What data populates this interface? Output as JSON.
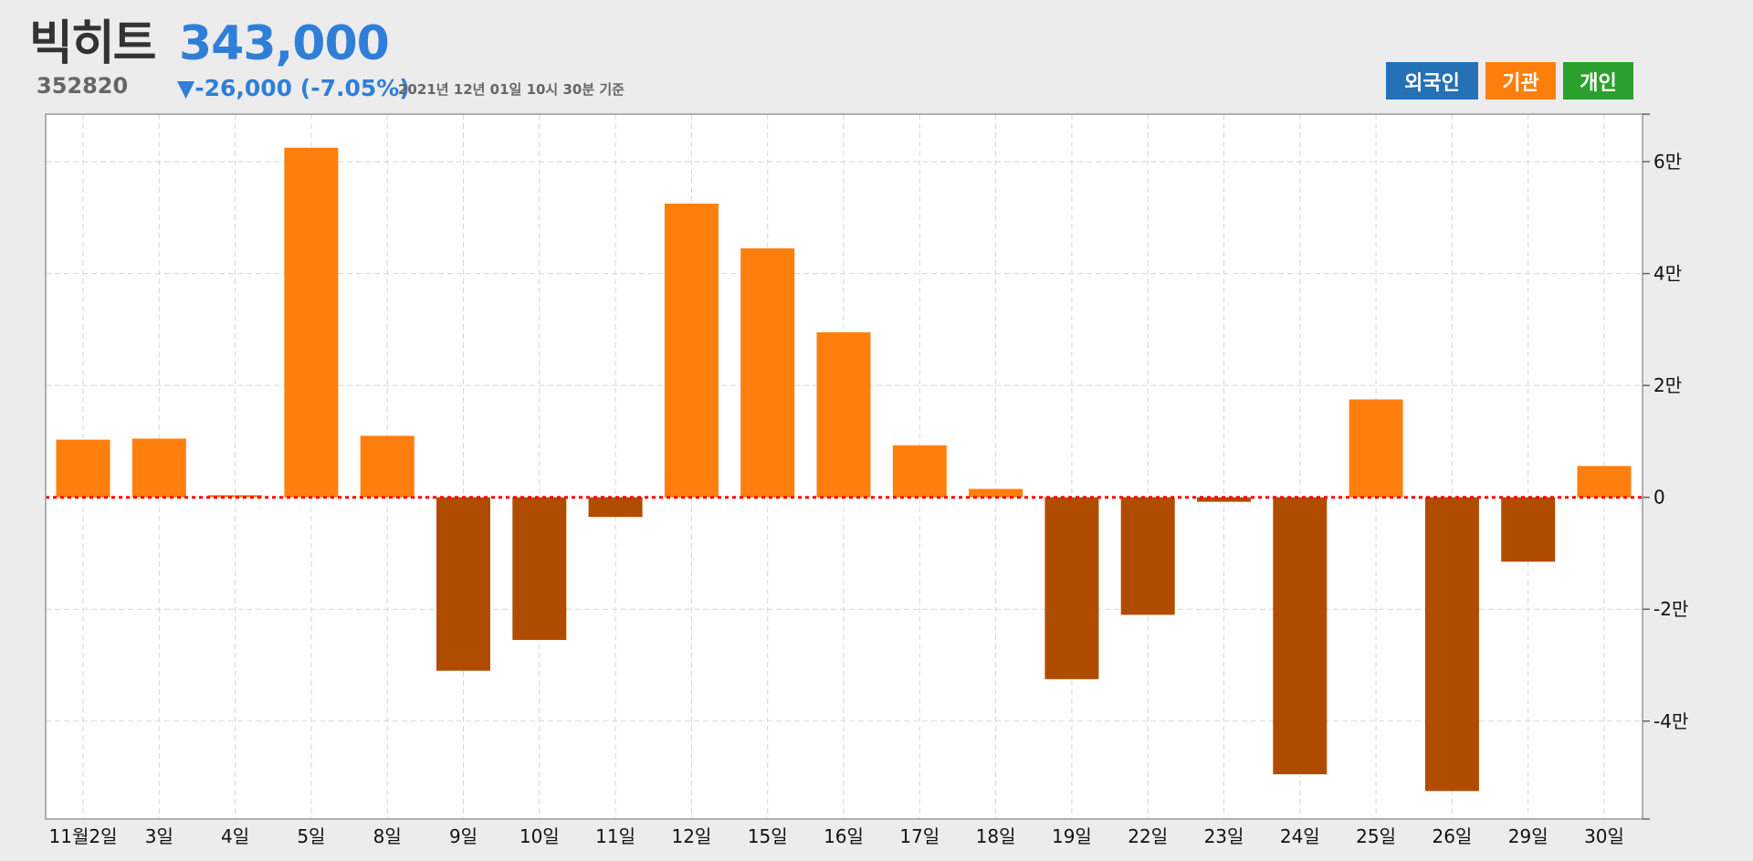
{
  "stock": {
    "name": "빅히트",
    "price": "343,000",
    "code": "352820",
    "change": "▼-26,000 (-7.05%)",
    "as_of": "2021년 12년 01일 10시 30분 기준"
  },
  "legend": {
    "foreign": {
      "label": "외국인",
      "color": "#2471b5"
    },
    "institution": {
      "label": "기관",
      "color": "#ff7f0e"
    },
    "individual": {
      "label": "개인",
      "color": "#2ca02c"
    }
  },
  "chart_data": {
    "type": "bar",
    "categories": [
      "11월2일",
      "3일",
      "4일",
      "5일",
      "8일",
      "9일",
      "10일",
      "11일",
      "12일",
      "15일",
      "16일",
      "17일",
      "18일",
      "19일",
      "22일",
      "23일",
      "24일",
      "25일",
      "26일",
      "29일",
      "30일"
    ],
    "series": [
      {
        "name": "기관",
        "values": [
          10300,
          10500,
          400,
          62500,
          11000,
          -31000,
          -25500,
          -3500,
          52500,
          44500,
          29500,
          9300,
          1500,
          -32500,
          -21000,
          -800,
          -49500,
          17500,
          -52500,
          -11500,
          5600
        ]
      }
    ],
    "positive_color": "#ff7f0e",
    "negative_color": "#b04c00",
    "zero_line_color": "#ff0000",
    "ylim": [
      -57500,
      68500
    ],
    "yticks": [
      {
        "value": 60000,
        "label": "6만"
      },
      {
        "value": 40000,
        "label": "4만"
      },
      {
        "value": 20000,
        "label": "2만"
      },
      {
        "value": 0,
        "label": "0"
      },
      {
        "value": -20000,
        "label": "-2만"
      },
      {
        "value": -40000,
        "label": "-4만"
      }
    ],
    "grid": true,
    "y_axis_side": "right"
  }
}
